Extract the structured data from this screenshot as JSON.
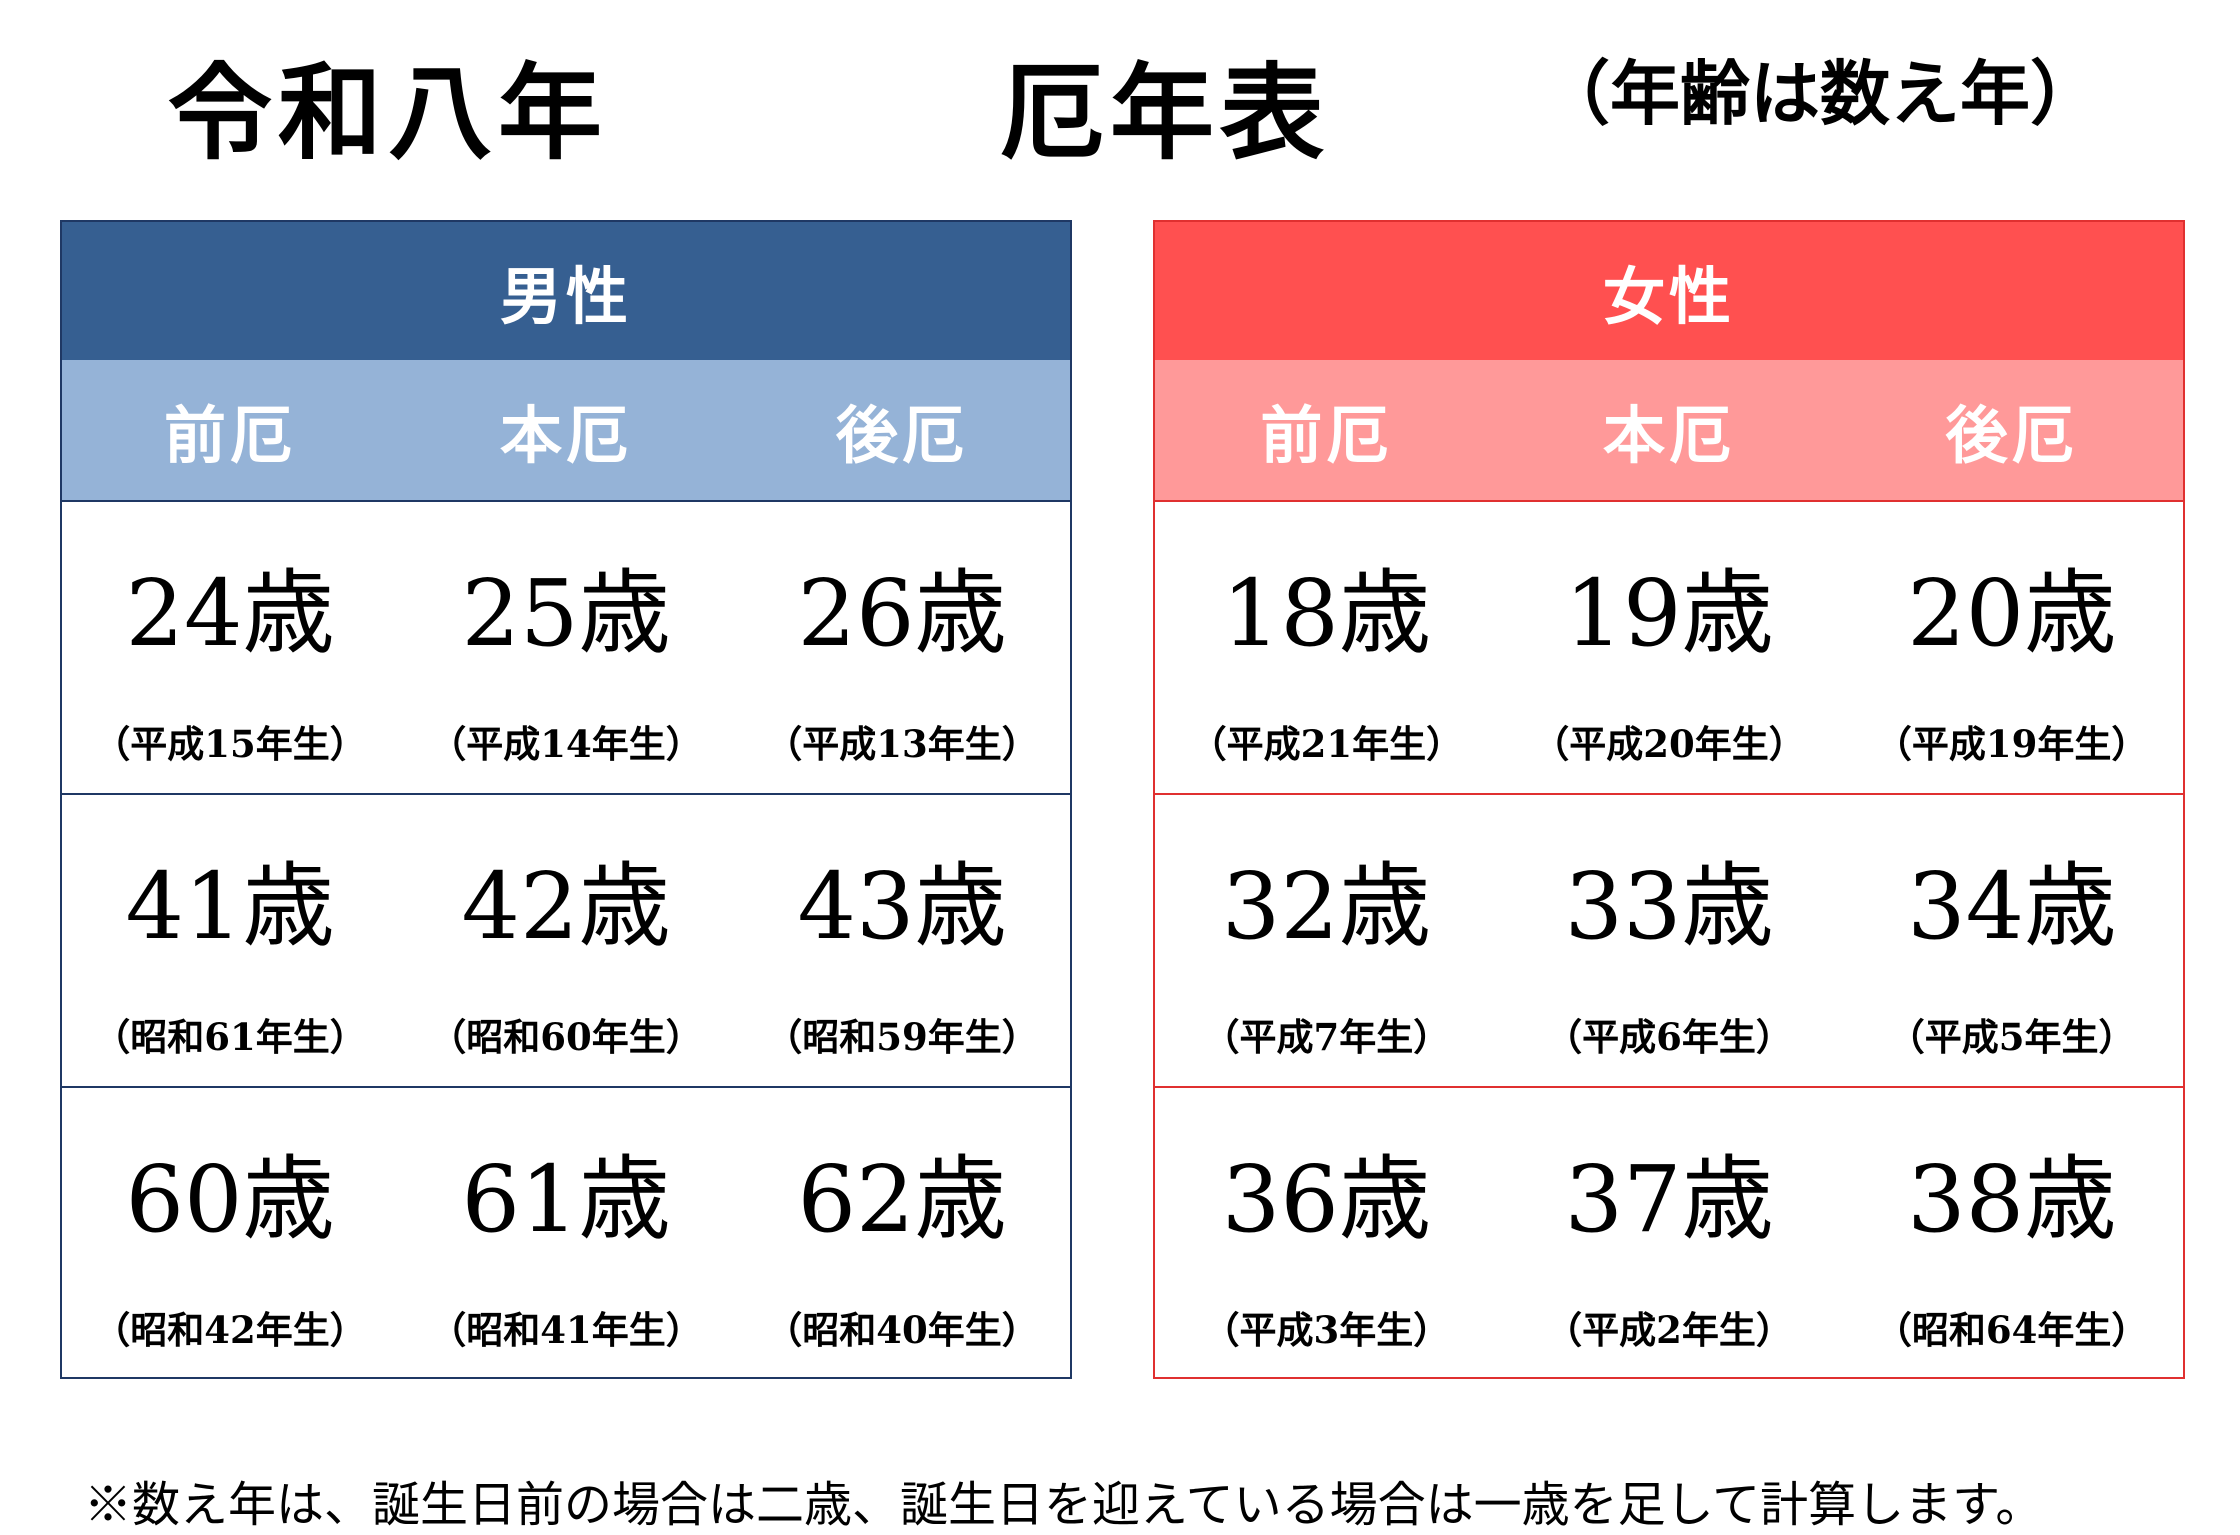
{
  "header": {
    "era_year": "令和八年",
    "title": "厄年表",
    "note": "（年齢は数え年）"
  },
  "tables": [
    {
      "label": "男性",
      "columns": [
        "前厄",
        "本厄",
        "後厄"
      ],
      "rows": [
        [
          {
            "age": "24歳",
            "birth": "（平成15年生）"
          },
          {
            "age": "25歳",
            "birth": "（平成14年生）"
          },
          {
            "age": "26歳",
            "birth": "（平成13年生）"
          }
        ],
        [
          {
            "age": "41歳",
            "birth": "（昭和61年生）"
          },
          {
            "age": "42歳",
            "birth": "（昭和60年生）"
          },
          {
            "age": "43歳",
            "birth": "（昭和59年生）"
          }
        ],
        [
          {
            "age": "60歳",
            "birth": "（昭和42年生）"
          },
          {
            "age": "61歳",
            "birth": "（昭和41年生）"
          },
          {
            "age": "62歳",
            "birth": "（昭和40年生）"
          }
        ]
      ]
    },
    {
      "label": "女性",
      "columns": [
        "前厄",
        "本厄",
        "後厄"
      ],
      "rows": [
        [
          {
            "age": "18歳",
            "birth": "（平成21年生）"
          },
          {
            "age": "19歳",
            "birth": "（平成20年生）"
          },
          {
            "age": "20歳",
            "birth": "（平成19年生）"
          }
        ],
        [
          {
            "age": "32歳",
            "birth": "（平成7年生）"
          },
          {
            "age": "33歳",
            "birth": "（平成6年生）"
          },
          {
            "age": "34歳",
            "birth": "（平成5年生）"
          }
        ],
        [
          {
            "age": "36歳",
            "birth": "（平成3年生）"
          },
          {
            "age": "37歳",
            "birth": "（平成2年生）"
          },
          {
            "age": "38歳",
            "birth": "（昭和64年生）"
          }
        ]
      ]
    }
  ],
  "footnote": "※数え年は、誕生日前の場合は二歳、誕生日を迎えている場合は一歳を足して計算します。"
}
